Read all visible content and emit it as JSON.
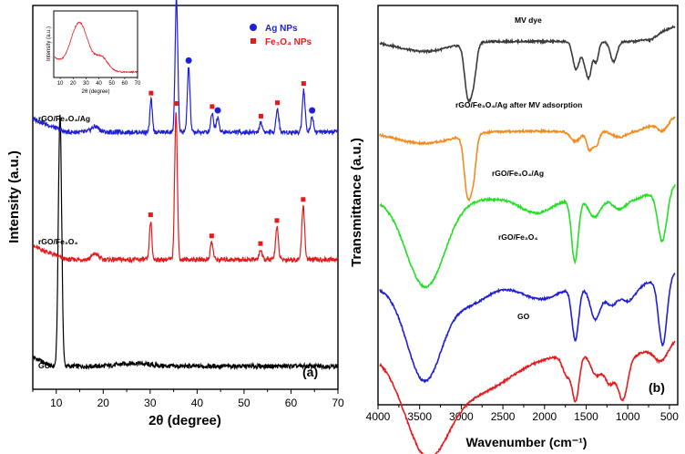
{
  "colors": {
    "GO_xrd": "#000000",
    "rGO_Fe3O4_xrd": "#e41a1c",
    "rGO_Fe3O4_Ag_xrd": "#1f1fd6",
    "MV_dye": "#3a3a3a",
    "after_ads": "#f28c1e",
    "rGO_Fe3O4_Ag_ftir": "#22e022",
    "rGO_Fe3O4_ftir": "#1f1fd6",
    "GO_ftir": "#e41a1c",
    "ag_marker": "#1f1fd6",
    "fe_marker": "#e41a1c"
  },
  "chart_data": [
    {
      "type": "line",
      "panel": "(a)",
      "title": "",
      "xlabel": "2θ (degree)",
      "ylabel": "Intensity (a.u.)",
      "xlim": [
        5,
        70
      ],
      "xticks": [
        10,
        20,
        30,
        40,
        50,
        60,
        70
      ],
      "ylim": [
        0,
        10
      ],
      "yticks_shown": false,
      "legend": {
        "position": "top-right",
        "entries": [
          {
            "marker": "circle",
            "label": "Ag NPs",
            "color": "#1f1fd6"
          },
          {
            "marker": "square",
            "label": "Fe₃O₄ NPs",
            "color": "#e41a1c"
          }
        ]
      },
      "series": [
        {
          "name": "GO",
          "label": "GO",
          "color": "#000000",
          "baseline": 0.6,
          "peaks": [
            [
              10.8,
              6.6,
              0.35
            ],
            [
              26.5,
              0.08,
              3.0
            ]
          ]
        },
        {
          "name": "rGO/Fe3O4",
          "label": "rGO/Fe₃O₄",
          "color": "#e41a1c",
          "baseline": 3.38,
          "peaks": [
            [
              18.3,
              0.15,
              0.7
            ],
            [
              30.1,
              1.0,
              0.25
            ],
            [
              35.5,
              3.9,
              0.28
            ],
            [
              43.1,
              0.45,
              0.3
            ],
            [
              53.5,
              0.25,
              0.3
            ],
            [
              57.0,
              0.85,
              0.3
            ],
            [
              62.6,
              1.4,
              0.3
            ]
          ],
          "markers": {
            "fe3o4": [
              30.1,
              35.5,
              43.1,
              53.5,
              57.0,
              62.6
            ]
          }
        },
        {
          "name": "rGO/Fe3O4/Ag",
          "label": "rGO/Fe₃O₄/Ag",
          "color": "#1f1fd6",
          "baseline": 6.7,
          "peaks": [
            [
              18.3,
              0.15,
              0.8
            ],
            [
              30.2,
              0.85,
              0.25
            ],
            [
              35.6,
              3.5,
              0.28
            ],
            [
              38.2,
              1.7,
              0.28
            ],
            [
              43.2,
              0.5,
              0.3
            ],
            [
              44.4,
              0.4,
              0.3
            ],
            [
              53.6,
              0.25,
              0.3
            ],
            [
              57.1,
              0.6,
              0.3
            ],
            [
              62.7,
              1.1,
              0.3
            ],
            [
              64.5,
              0.4,
              0.3
            ]
          ],
          "markers": {
            "fe3o4": [
              30.2,
              35.6,
              43.2,
              53.6,
              57.1,
              62.7
            ],
            "ag": [
              38.2,
              44.4,
              64.5
            ]
          }
        }
      ],
      "inset": {
        "xlabel": "2θ (degree)",
        "ylabel": "Intensity (a.u.)",
        "xlim": [
          5,
          70
        ],
        "xticks": [
          10,
          20,
          30,
          40,
          50,
          60,
          70
        ],
        "color": "#e41a1c",
        "peaks": [
          [
            25,
            1.0,
            6.5
          ],
          [
            42,
            0.3,
            5.0
          ]
        ]
      }
    },
    {
      "type": "line",
      "panel": "(b)",
      "title": "",
      "xlabel": "Wavenumber (cm⁻¹)",
      "ylabel": "Transmittance (a.u.)",
      "xlim": [
        4000,
        400
      ],
      "xticks": [
        4000,
        3500,
        3000,
        2500,
        2000,
        1500,
        1000,
        500
      ],
      "yticks_shown": false,
      "series": [
        {
          "name": "MV dye",
          "label": "MV dye",
          "color": "#3a3a3a",
          "baseline": 9.1,
          "bands": [
            [
              3450,
              0.25,
              300
            ],
            [
              2920,
              1.3,
              40
            ],
            [
              2850,
              0.8,
              35
            ],
            [
              1620,
              0.7,
              40
            ],
            [
              1510,
              0.5,
              35
            ],
            [
              1460,
              0.7,
              30
            ],
            [
              1380,
              0.5,
              30
            ],
            [
              1170,
              0.5,
              40
            ],
            [
              720,
              0.1,
              60
            ]
          ]
        },
        {
          "name": "rGO/Fe3O4/Ag after MV adsorption",
          "label": "rGO/Fe₃O₄/Ag after MV adsorption",
          "color": "#f28c1e",
          "baseline": 6.85,
          "bands": [
            [
              3450,
              0.3,
              350
            ],
            [
              2925,
              1.45,
              40
            ],
            [
              2855,
              0.95,
              35
            ],
            [
              1630,
              0.25,
              60
            ],
            [
              1460,
              0.45,
              35
            ],
            [
              1380,
              0.35,
              35
            ],
            [
              1100,
              0.15,
              80
            ],
            [
              580,
              0.25,
              60
            ]
          ]
        },
        {
          "name": "rGO/Fe3O4/Ag",
          "label": "rGO/Fe₃O₄/Ag",
          "color": "#22e022",
          "baseline": 5.15,
          "bands": [
            [
              3430,
              2.2,
              230
            ],
            [
              2100,
              0.35,
              180
            ],
            [
              1635,
              1.55,
              40
            ],
            [
              1400,
              0.45,
              70
            ],
            [
              1100,
              0.25,
              80
            ],
            [
              585,
              1.3,
              55
            ]
          ]
        },
        {
          "name": "rGO/Fe3O4",
          "label": "rGO/Fe₃O₄",
          "color": "#1f1fd6",
          "baseline": 2.95,
          "bands": [
            [
              3440,
              2.35,
              210
            ],
            [
              2900,
              0.4,
              200
            ],
            [
              2050,
              0.3,
              200
            ],
            [
              1630,
              1.3,
              40
            ],
            [
              1390,
              0.8,
              60
            ],
            [
              1200,
              0.45,
              70
            ],
            [
              1000,
              0.35,
              80
            ],
            [
              580,
              1.7,
              50
            ]
          ]
        },
        {
          "name": "GO",
          "label": "GO",
          "color": "#e41a1c",
          "baseline": 1.25,
          "bands": [
            [
              3420,
              2.3,
              260
            ],
            [
              2800,
              0.9,
              400
            ],
            [
              1730,
              0.5,
              50
            ],
            [
              1625,
              1.1,
              40
            ],
            [
              1380,
              0.5,
              60
            ],
            [
              1220,
              0.7,
              60
            ],
            [
              1060,
              1.1,
              60
            ],
            [
              600,
              0.4,
              80
            ]
          ]
        }
      ]
    }
  ]
}
